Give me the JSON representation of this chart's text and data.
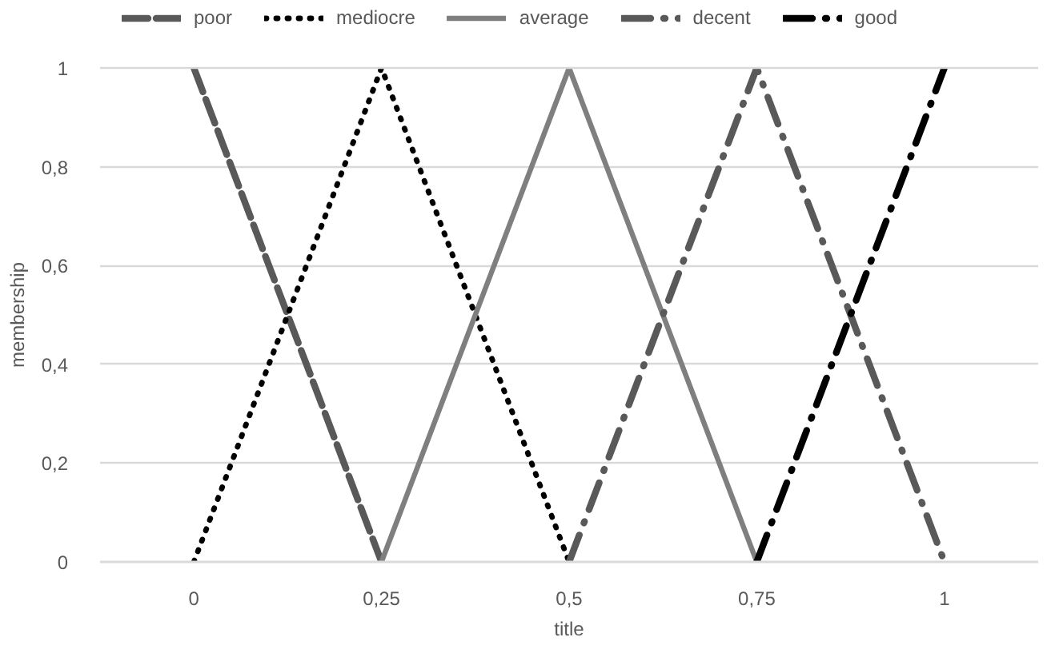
{
  "chart_data": {
    "type": "line",
    "xlabel": "title",
    "ylabel": "membership",
    "categories": [
      "0",
      "0,25",
      "0,5",
      "0,75",
      "1"
    ],
    "series": [
      {
        "name": "poor",
        "color": "#595959",
        "line_style": "dashed",
        "values": [
          1,
          0,
          null,
          null,
          null
        ]
      },
      {
        "name": "mediocre",
        "color": "#000000",
        "line_style": "dotted",
        "values": [
          0,
          1,
          0,
          null,
          null
        ]
      },
      {
        "name": "average",
        "color": "#7f7f7f",
        "line_style": "solid",
        "values": [
          null,
          0,
          1,
          0,
          null
        ]
      },
      {
        "name": "decent",
        "color": "#595959",
        "line_style": "dashdot",
        "values": [
          null,
          null,
          0,
          1,
          0
        ]
      },
      {
        "name": "good",
        "color": "#000000",
        "line_style": "dashdot",
        "values": [
          null,
          null,
          null,
          0,
          1
        ]
      }
    ],
    "ylim": [
      0,
      1
    ],
    "yticks": [
      0,
      {
        "value": 0.2,
        "label": "0,2"
      },
      {
        "value": 0.4,
        "label": "0,4"
      },
      {
        "value": 0.6,
        "label": "0,6"
      },
      {
        "value": 0.8,
        "label": "0,8"
      },
      1
    ],
    "grid": "y",
    "legend": "top"
  }
}
